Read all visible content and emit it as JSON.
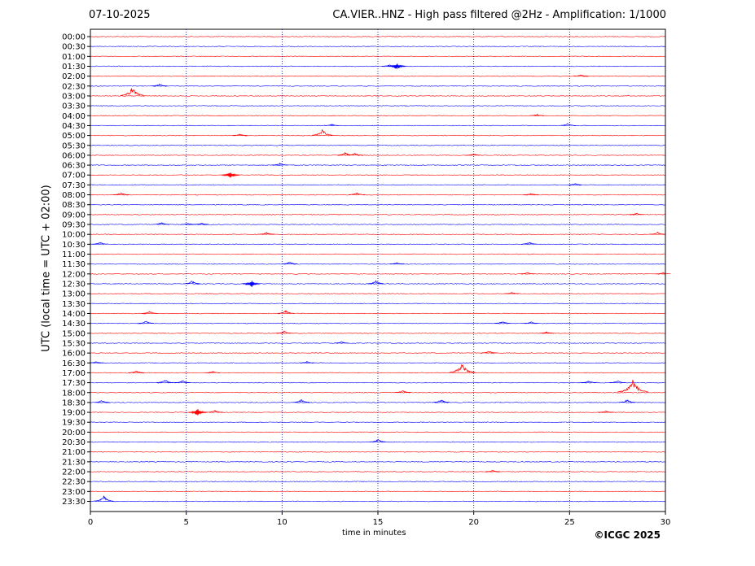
{
  "header": {
    "date": "07-10-2025",
    "title": "CA.VIER..HNZ - High pass filtered @2Hz - Amplification: 1/1000"
  },
  "footer": {
    "copyright": "©ICGC 2025"
  },
  "chart_data": {
    "type": "line",
    "title": "CA.VIER..HNZ - High pass filtered @2Hz - Amplification: 1/1000",
    "xlabel": "time in minutes",
    "ylabel": "UTC (local time = UTC + 02:00)",
    "xlim": [
      0,
      30
    ],
    "x_ticks": [
      0,
      5,
      10,
      15,
      20,
      25,
      30
    ],
    "grid": "vertical dotted lines at 5-minute ticks",
    "colors": {
      "red": "#ff0000",
      "blue": "#0000ff"
    },
    "series": [
      {
        "label": "00:00",
        "color": "red",
        "events": []
      },
      {
        "label": "00:30",
        "color": "blue",
        "events": []
      },
      {
        "label": "01:00",
        "color": "red",
        "events": []
      },
      {
        "label": "01:30",
        "color": "blue",
        "events": [
          [
            16.0,
            5
          ],
          [
            15.6,
            2
          ]
        ]
      },
      {
        "label": "02:00",
        "color": "red",
        "events": [
          [
            25.6,
            2
          ]
        ]
      },
      {
        "label": "02:30",
        "color": "blue",
        "events": [
          [
            3.6,
            3
          ]
        ]
      },
      {
        "label": "03:00",
        "color": "red",
        "events": [
          [
            2.2,
            12
          ]
        ]
      },
      {
        "label": "03:30",
        "color": "blue",
        "events": []
      },
      {
        "label": "04:00",
        "color": "red",
        "events": [
          [
            23.3,
            2
          ]
        ]
      },
      {
        "label": "04:30",
        "color": "blue",
        "events": [
          [
            12.6,
            2
          ],
          [
            24.9,
            3
          ]
        ]
      },
      {
        "label": "05:00",
        "color": "red",
        "events": [
          [
            7.8,
            2
          ],
          [
            12.1,
            8
          ]
        ]
      },
      {
        "label": "05:30",
        "color": "blue",
        "events": []
      },
      {
        "label": "06:00",
        "color": "red",
        "events": [
          [
            13.3,
            4
          ],
          [
            13.8,
            3
          ],
          [
            20.0,
            2
          ]
        ]
      },
      {
        "label": "06:30",
        "color": "blue",
        "events": [
          [
            9.9,
            3
          ]
        ]
      },
      {
        "label": "07:00",
        "color": "red",
        "events": [
          [
            7.3,
            5
          ]
        ]
      },
      {
        "label": "07:30",
        "color": "blue",
        "events": [
          [
            25.3,
            2
          ]
        ]
      },
      {
        "label": "08:00",
        "color": "red",
        "events": [
          [
            1.6,
            3
          ],
          [
            13.9,
            3
          ],
          [
            23.0,
            2
          ]
        ]
      },
      {
        "label": "08:30",
        "color": "blue",
        "events": []
      },
      {
        "label": "09:00",
        "color": "red",
        "events": [
          [
            28.5,
            2
          ]
        ]
      },
      {
        "label": "09:30",
        "color": "blue",
        "events": [
          [
            3.7,
            3
          ],
          [
            5.1,
            2
          ],
          [
            5.8,
            2
          ]
        ]
      },
      {
        "label": "10:00",
        "color": "red",
        "events": [
          [
            9.2,
            3
          ],
          [
            29.6,
            3
          ]
        ]
      },
      {
        "label": "10:30",
        "color": "blue",
        "events": [
          [
            0.5,
            3
          ],
          [
            22.9,
            3
          ]
        ]
      },
      {
        "label": "11:00",
        "color": "red",
        "events": []
      },
      {
        "label": "11:30",
        "color": "blue",
        "events": [
          [
            10.4,
            3
          ],
          [
            16.0,
            2
          ]
        ]
      },
      {
        "label": "12:00",
        "color": "red",
        "events": [
          [
            22.8,
            2
          ],
          [
            29.9,
            2
          ]
        ]
      },
      {
        "label": "12:30",
        "color": "blue",
        "events": [
          [
            5.3,
            4
          ],
          [
            8.4,
            5
          ],
          [
            14.9,
            4
          ]
        ]
      },
      {
        "label": "13:00",
        "color": "red",
        "events": [
          [
            22.0,
            2
          ]
        ]
      },
      {
        "label": "13:30",
        "color": "blue",
        "events": []
      },
      {
        "label": "14:00",
        "color": "red",
        "events": [
          [
            3.1,
            3
          ],
          [
            10.2,
            4
          ]
        ]
      },
      {
        "label": "14:30",
        "color": "blue",
        "events": [
          [
            2.9,
            3
          ],
          [
            21.5,
            3
          ],
          [
            23.0,
            2
          ]
        ]
      },
      {
        "label": "15:00",
        "color": "red",
        "events": [
          [
            10.1,
            3
          ],
          [
            23.8,
            2
          ]
        ]
      },
      {
        "label": "15:30",
        "color": "blue",
        "events": [
          [
            13.1,
            2
          ]
        ]
      },
      {
        "label": "16:00",
        "color": "red",
        "events": [
          [
            20.8,
            3
          ]
        ]
      },
      {
        "label": "16:30",
        "color": "blue",
        "events": [
          [
            0.3,
            2
          ],
          [
            11.3,
            2
          ]
        ]
      },
      {
        "label": "17:00",
        "color": "red",
        "events": [
          [
            2.4,
            3
          ],
          [
            6.4,
            2
          ],
          [
            19.4,
            13
          ]
        ]
      },
      {
        "label": "17:30",
        "color": "blue",
        "events": [
          [
            3.9,
            4
          ],
          [
            4.8,
            3
          ],
          [
            26.0,
            3
          ],
          [
            27.5,
            3
          ]
        ]
      },
      {
        "label": "18:00",
        "color": "red",
        "events": [
          [
            16.3,
            3
          ],
          [
            28.3,
            18
          ]
        ]
      },
      {
        "label": "18:30",
        "color": "blue",
        "events": [
          [
            0.6,
            3
          ],
          [
            11.0,
            4
          ],
          [
            18.3,
            4
          ],
          [
            28.0,
            4
          ]
        ]
      },
      {
        "label": "19:00",
        "color": "red",
        "events": [
          [
            5.6,
            5
          ],
          [
            6.5,
            3
          ],
          [
            26.9,
            2
          ]
        ]
      },
      {
        "label": "19:30",
        "color": "blue",
        "events": []
      },
      {
        "label": "20:00",
        "color": "red",
        "events": []
      },
      {
        "label": "20:30",
        "color": "blue",
        "events": [
          [
            15.0,
            4
          ]
        ]
      },
      {
        "label": "21:00",
        "color": "red",
        "events": []
      },
      {
        "label": "21:30",
        "color": "blue",
        "events": []
      },
      {
        "label": "22:00",
        "color": "red",
        "events": [
          [
            21.0,
            2
          ]
        ]
      },
      {
        "label": "22:30",
        "color": "blue",
        "events": []
      },
      {
        "label": "23:00",
        "color": "red",
        "events": []
      },
      {
        "label": "23:30",
        "color": "blue",
        "events": [
          [
            0.7,
            7
          ]
        ]
      }
    ]
  }
}
